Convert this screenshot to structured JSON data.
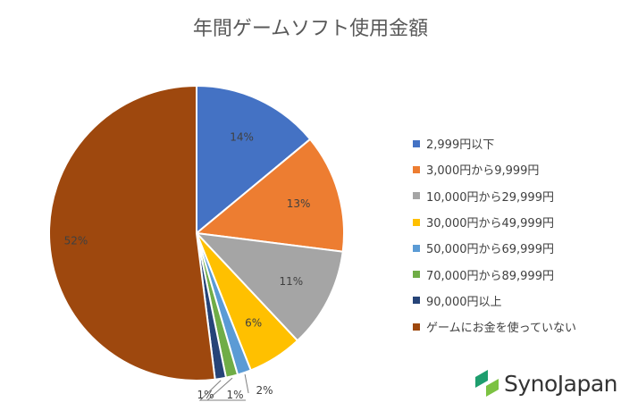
{
  "chart_data": {
    "type": "pie",
    "title": "年間ゲームソフト使用金額",
    "legend_position": "right",
    "slices": [
      {
        "label": "2,999円以下",
        "value": 14,
        "display": "14%",
        "color": "#4472C4"
      },
      {
        "label": "3,000円から9,999円",
        "value": 13,
        "display": "13%",
        "color": "#ED7D31"
      },
      {
        "label": "10,000円から29,999円",
        "value": 11,
        "display": "11%",
        "color": "#A5A5A5"
      },
      {
        "label": "30,000円から49,999円",
        "value": 6,
        "display": "6%",
        "color": "#FFC000"
      },
      {
        "label": "50,000円から69,999円",
        "value": 1.5,
        "display": "2%",
        "color": "#5B9BD5"
      },
      {
        "label": "70,000円から89,999円",
        "value": 1.3,
        "display": "1%",
        "color": "#70AD47"
      },
      {
        "label": "90,000円以上",
        "value": 1.2,
        "display": "1%",
        "color": "#264478"
      },
      {
        "label": "ゲームにお金を使っていない",
        "value": 52,
        "display": "52%",
        "color": "#9E480E"
      }
    ]
  },
  "logo": {
    "text": "SynoJapan",
    "colors": [
      "#1E9E6E",
      "#7CC242"
    ]
  }
}
